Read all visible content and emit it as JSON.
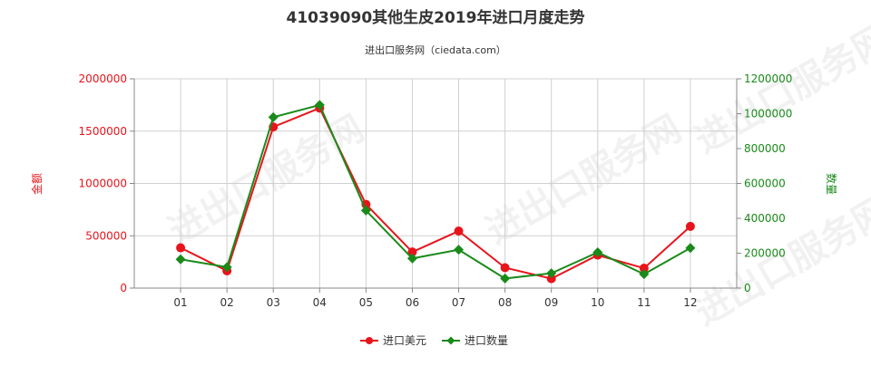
{
  "header": {
    "title": "41039090其他生皮2019年进口月度走势",
    "subtitle": "进出口服务网（ciedata.com）"
  },
  "watermark": {
    "text": "进出口服务网"
  },
  "colors": {
    "amount": "#e8141b",
    "quantity": "#1a8a1a",
    "grid": "#d0d0d0",
    "axis": "#888888"
  },
  "chart_data": {
    "type": "line",
    "title": "41039090其他生皮2019年进口月度走势",
    "categories": [
      "01",
      "02",
      "03",
      "04",
      "05",
      "06",
      "07",
      "08",
      "09",
      "10",
      "11",
      "12"
    ],
    "y_left": {
      "label": "金额",
      "ylim": [
        0,
        2000000
      ],
      "ticks": [
        0,
        500000,
        1000000,
        1500000,
        2000000
      ],
      "tick_labels": [
        "0",
        "500000",
        "1000000",
        "1500000",
        "2000000"
      ]
    },
    "y_right": {
      "label": "数量",
      "ylim": [
        0,
        1200000
      ],
      "ticks": [
        0,
        200000,
        400000,
        600000,
        800000,
        1000000,
        1200000
      ],
      "tick_labels": [
        "0",
        "200000",
        "400000",
        "600000",
        "800000",
        "1000000",
        "1200000"
      ]
    },
    "series": [
      {
        "name": "进口美元",
        "axis": "left",
        "marker": "circle",
        "values": [
          385000,
          165000,
          1540000,
          1720000,
          800000,
          345000,
          545000,
          195000,
          90000,
          315000,
          190000,
          590000
        ]
      },
      {
        "name": "进口数量",
        "axis": "right",
        "marker": "diamond",
        "values": [
          165000,
          120000,
          980000,
          1050000,
          445000,
          170000,
          220000,
          55000,
          85000,
          205000,
          80000,
          230000
        ]
      }
    ],
    "grid": true,
    "legend_position": "bottom-center"
  }
}
